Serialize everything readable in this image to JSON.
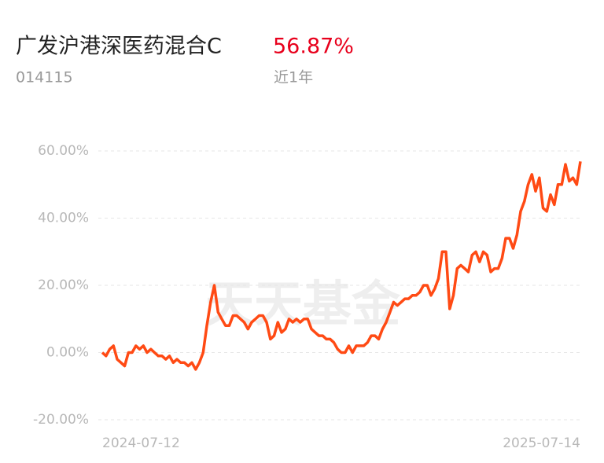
{
  "fund": {
    "name": "广发沪港深医药混合C",
    "code": "014115",
    "return": {
      "value": 56.87,
      "label": "56.87%"
    },
    "period": "近1年"
  },
  "watermark": "天天基金",
  "chart_data": {
    "type": "line",
    "categories": [
      "2024-07-12",
      null,
      null,
      null,
      null,
      null,
      null,
      null,
      null,
      null,
      null,
      null,
      null,
      null,
      null,
      null,
      null,
      null,
      null,
      null,
      null,
      null,
      null,
      null,
      null,
      null,
      null,
      null,
      null,
      null,
      null,
      null,
      null,
      null,
      null,
      null,
      null,
      null,
      null,
      null,
      null,
      null,
      null,
      null,
      null,
      null,
      null,
      null,
      null,
      null,
      null,
      null,
      null,
      null,
      null,
      null,
      null,
      null,
      null,
      null,
      null,
      null,
      null,
      null,
      null,
      null,
      null,
      null,
      null,
      null,
      null,
      null,
      null,
      null,
      null,
      null,
      null,
      null,
      null,
      null,
      null,
      null,
      null,
      null,
      null,
      null,
      null,
      null,
      null,
      null,
      null,
      null,
      null,
      null,
      null,
      null,
      null,
      null,
      null,
      null,
      null,
      null,
      null,
      null,
      null,
      null,
      null,
      null,
      null,
      null,
      null,
      null,
      null,
      null,
      null,
      null,
      null,
      null,
      null,
      null,
      null,
      null,
      null,
      null,
      null,
      null,
      null,
      null,
      "2025-07-14"
    ],
    "series": [
      {
        "color": "#ff4a14",
        "values": [
          0,
          -1,
          1,
          2,
          -2,
          -3,
          -4,
          0,
          0,
          2,
          1,
          2,
          0,
          1,
          0,
          -1,
          -1,
          -2,
          -1,
          -3,
          -2,
          -3,
          -3,
          -4,
          -3,
          -5,
          -3,
          0,
          8,
          15,
          20,
          12,
          10,
          8,
          8,
          11,
          11,
          10,
          9,
          7,
          9,
          10,
          11,
          11,
          9,
          4,
          5,
          9,
          6,
          7,
          10,
          9,
          10,
          9,
          10,
          10,
          7,
          6,
          5,
          5,
          4,
          4,
          3,
          1,
          0,
          0,
          2,
          0,
          2,
          2,
          2,
          3,
          5,
          5,
          4,
          7,
          9,
          12,
          15,
          14,
          15,
          16,
          16,
          17,
          17,
          18,
          20,
          20,
          17,
          19,
          22,
          30,
          30,
          13,
          17,
          25,
          26,
          25,
          24,
          29,
          30,
          27,
          30,
          29,
          24,
          25,
          25,
          28,
          34,
          34,
          31,
          35,
          42,
          45,
          50,
          53,
          48,
          52,
          43,
          42,
          47,
          44,
          50,
          50,
          56,
          51,
          52,
          50,
          56.87
        ]
      }
    ],
    "ylim": [
      -20,
      60
    ],
    "yticks": [
      {
        "value": -20,
        "label": "-20.00%"
      },
      {
        "value": 0,
        "label": "0.00%"
      },
      {
        "value": 20,
        "label": "20.00%"
      },
      {
        "value": 40,
        "label": "40.00%"
      },
      {
        "value": 60,
        "label": "60.00%"
      }
    ],
    "grid": true
  }
}
